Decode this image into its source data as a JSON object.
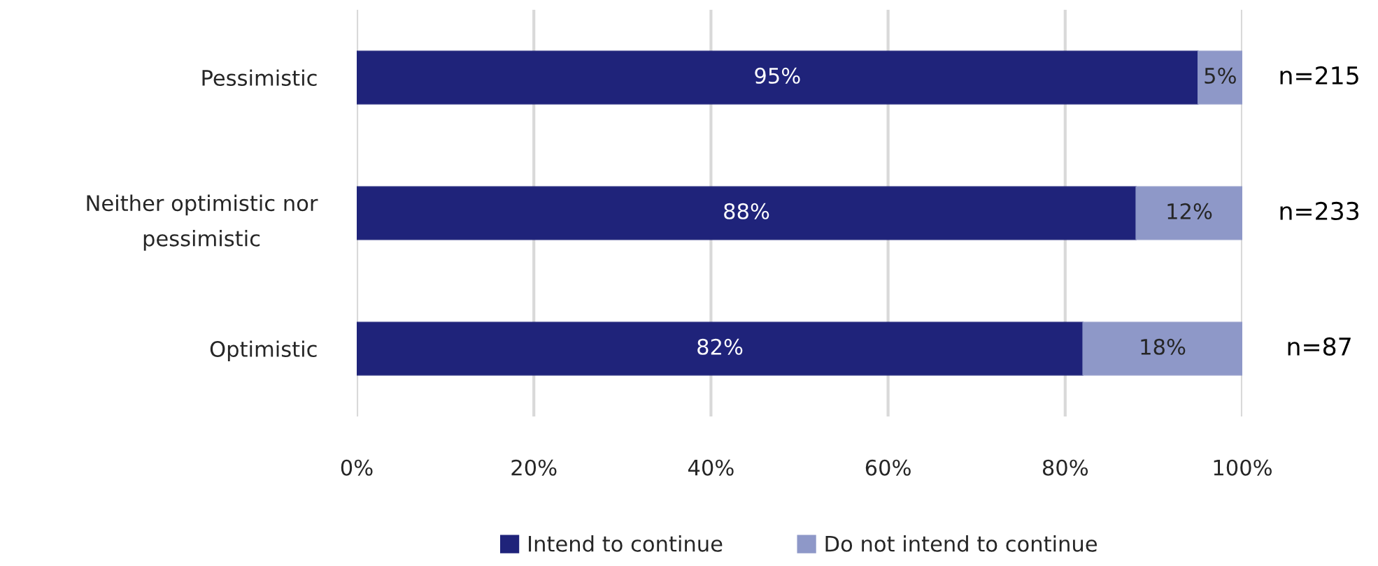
{
  "chart_data": {
    "type": "bar",
    "orientation": "horizontal",
    "stacked": true,
    "categories": [
      "Pessimistic",
      "Neither optimistic nor\npessimistic",
      "Optimistic"
    ],
    "series": [
      {
        "name": "Intend to continue",
        "color": "#1f237a",
        "values": [
          95,
          88,
          82
        ],
        "value_labels": [
          "95%",
          "88%",
          "82%"
        ]
      },
      {
        "name": "Do not intend to continue",
        "color": "#8e98c8",
        "values": [
          5,
          12,
          18
        ],
        "value_labels": [
          "5%",
          "12%",
          "18%"
        ]
      }
    ],
    "xlim": [
      0,
      100
    ],
    "xticks": [
      {
        "value": 0,
        "label": "0%"
      },
      {
        "value": 20,
        "label": "20%"
      },
      {
        "value": 40,
        "label": "40%"
      },
      {
        "value": 60,
        "label": "60%"
      },
      {
        "value": 80,
        "label": "80%"
      },
      {
        "value": 100,
        "label": "100%"
      }
    ],
    "grid": "x",
    "legend": "bottom",
    "annotations": [
      "n=215",
      "n=233",
      "n=87"
    ]
  }
}
